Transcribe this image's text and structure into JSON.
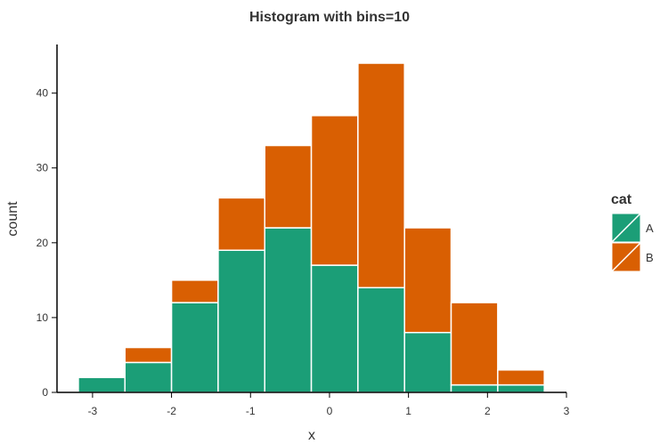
{
  "chart_data": {
    "type": "bar",
    "stacked": true,
    "title": "Histogram with bins=10",
    "xlabel": "x",
    "ylabel": "count",
    "xlim": [
      -3.45,
      3.0
    ],
    "ylim": [
      0,
      46.5
    ],
    "xticks": [
      -3,
      -2,
      -1,
      0,
      1,
      2,
      3
    ],
    "yticks": [
      0,
      10,
      20,
      30,
      40
    ],
    "bins": [
      [
        -3.18,
        -2.59
      ],
      [
        -2.59,
        -2.0
      ],
      [
        -2.0,
        -1.41
      ],
      [
        -1.41,
        -0.82
      ],
      [
        -0.82,
        -0.23
      ],
      [
        -0.23,
        0.36
      ],
      [
        0.36,
        0.95
      ],
      [
        0.95,
        1.54
      ],
      [
        1.54,
        2.13
      ],
      [
        2.13,
        2.72
      ]
    ],
    "series": [
      {
        "name": "A",
        "color": "#1b9e77",
        "values": [
          2,
          4,
          12,
          19,
          22,
          17,
          14,
          8,
          1,
          1
        ]
      },
      {
        "name": "B",
        "color": "#d95f02",
        "values": [
          0,
          2,
          3,
          7,
          11,
          20,
          30,
          14,
          11,
          2
        ]
      }
    ],
    "legend": {
      "title": "cat",
      "position": "right"
    },
    "grid": false
  }
}
